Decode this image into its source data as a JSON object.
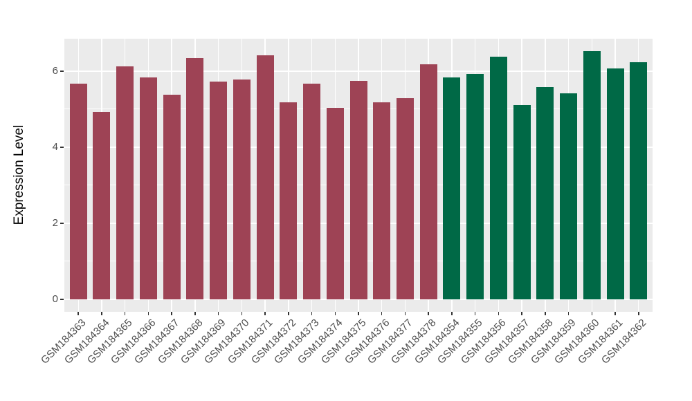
{
  "palette": {
    "panel_background": "#ebebeb",
    "grid_color": "#ffffff",
    "bar_red": "#9e4355",
    "bar_green": "#006946",
    "tick_mark_color": "#333333",
    "tick_label_color": "#4d4d4d",
    "axis_title_color": "#000000",
    "figure_background": "#ffffff"
  },
  "chart_data": {
    "type": "bar",
    "title": "",
    "xlabel": "",
    "ylabel": "Expression Level",
    "legend": "none",
    "grid": "on",
    "yticks_major": [
      0,
      2,
      4,
      6
    ],
    "yticks_minor": [
      1,
      3,
      5
    ],
    "ylim_shown": [
      -0.33,
      6.85
    ],
    "x_label_rotation_deg": 45,
    "groups": {
      "group1": {
        "color_key": "bar_red"
      },
      "group2": {
        "color_key": "bar_green"
      }
    },
    "bars": [
      {
        "label": "GSM184363",
        "value": 5.66,
        "group": "group1"
      },
      {
        "label": "GSM184364",
        "value": 4.92,
        "group": "group1"
      },
      {
        "label": "GSM184365",
        "value": 6.13,
        "group": "group1"
      },
      {
        "label": "GSM184366",
        "value": 5.84,
        "group": "group1"
      },
      {
        "label": "GSM184367",
        "value": 5.38,
        "group": "group1"
      },
      {
        "label": "GSM184368",
        "value": 6.34,
        "group": "group1"
      },
      {
        "label": "GSM184369",
        "value": 5.73,
        "group": "group1"
      },
      {
        "label": "GSM184370",
        "value": 5.78,
        "group": "group1"
      },
      {
        "label": "GSM184371",
        "value": 6.42,
        "group": "group1"
      },
      {
        "label": "GSM184372",
        "value": 5.18,
        "group": "group1"
      },
      {
        "label": "GSM184373",
        "value": 5.66,
        "group": "group1"
      },
      {
        "label": "GSM184374",
        "value": 5.04,
        "group": "group1"
      },
      {
        "label": "GSM184375",
        "value": 5.75,
        "group": "group1"
      },
      {
        "label": "GSM184376",
        "value": 5.18,
        "group": "group1"
      },
      {
        "label": "GSM184377",
        "value": 5.28,
        "group": "group1"
      },
      {
        "label": "GSM184378",
        "value": 6.18,
        "group": "group1"
      },
      {
        "label": "GSM184354",
        "value": 5.83,
        "group": "group2"
      },
      {
        "label": "GSM184355",
        "value": 5.92,
        "group": "group2"
      },
      {
        "label": "GSM184356",
        "value": 6.37,
        "group": "group2"
      },
      {
        "label": "GSM184357",
        "value": 5.11,
        "group": "group2"
      },
      {
        "label": "GSM184358",
        "value": 5.58,
        "group": "group2"
      },
      {
        "label": "GSM184359",
        "value": 5.41,
        "group": "group2"
      },
      {
        "label": "GSM184360",
        "value": 6.52,
        "group": "group2"
      },
      {
        "label": "GSM184361",
        "value": 6.07,
        "group": "group2"
      },
      {
        "label": "GSM184362",
        "value": 6.24,
        "group": "group2"
      }
    ]
  }
}
